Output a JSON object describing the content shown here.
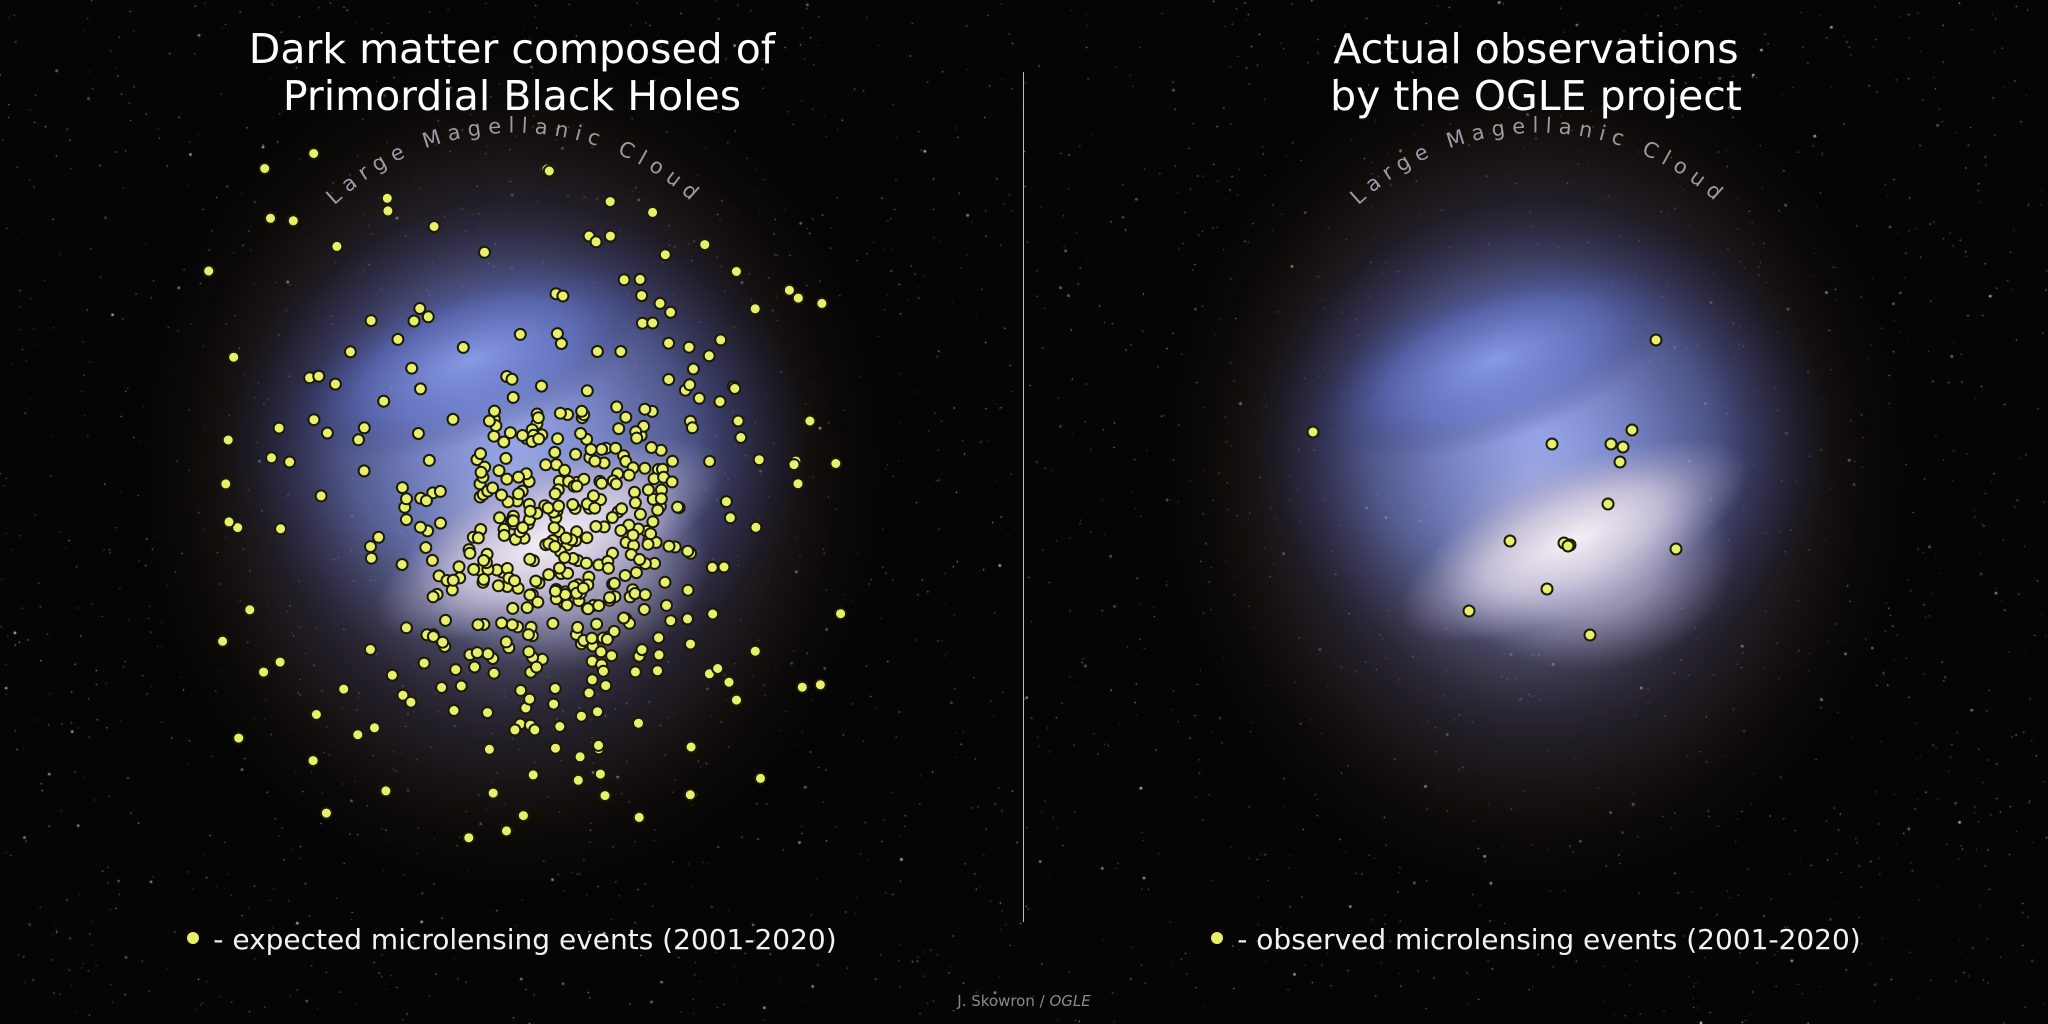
{
  "left_panel": {
    "title_line1": "Dark matter composed of",
    "title_line2": "Primordial Black Holes",
    "galaxy_label": "Large Magellanic Cloud",
    "legend_text": "- expected microlensing events (2001-2020)",
    "marker_count": 500
  },
  "right_panel": {
    "title_line1": "Actual observations",
    "title_line2": "by the OGLE project",
    "galaxy_label": "Large Magellanic Cloud",
    "legend_text": "- observed microlensing events (2001-2020)",
    "marker_count": 16
  },
  "credit": {
    "author": "J. Skowron /",
    "org": "OGLE"
  },
  "colors": {
    "background": "#050505",
    "marker_fill": "#e8f06a",
    "marker_stroke": "#1a1a0a",
    "galaxy_core": "#efeaf4",
    "galaxy_blue": "#7d8fe0",
    "label_text": "#9a9aa6"
  }
}
